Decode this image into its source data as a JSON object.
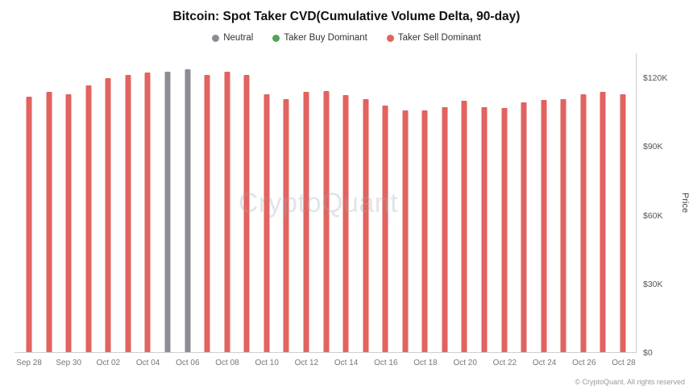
{
  "title": "Bitcoin: Spot Taker CVD(Cumulative Volume Delta, 90-day)",
  "legend": {
    "items": [
      {
        "label": "Neutral",
        "color": "#8c8c96",
        "category": "neutral"
      },
      {
        "label": "Taker Buy Dominant",
        "color": "#55a05a",
        "category": "buy"
      },
      {
        "label": "Taker Sell Dominant",
        "color": "#e2635f",
        "category": "sell"
      }
    ]
  },
  "watermark": "CryptoQuant",
  "footer": "© CryptoQuant. All rights reserved",
  "y_axis": {
    "label": "Price",
    "max": 131000,
    "ticks": [
      {
        "label": "$0",
        "value": 0
      },
      {
        "label": "$30K",
        "value": 30000
      },
      {
        "label": "$60K",
        "value": 60000
      },
      {
        "label": "$90K",
        "value": 90000
      },
      {
        "label": "$120K",
        "value": 120000
      }
    ]
  },
  "chart_data": {
    "type": "bar",
    "title": "Bitcoin: Spot Taker CVD(Cumulative Volume Delta, 90-day)",
    "ylabel": "Price",
    "ylim": [
      0,
      131000
    ],
    "grid": false,
    "legend_position": "top-center",
    "category_colors": {
      "neutral": "#8c8c96",
      "buy": "#55a05a",
      "sell": "#e2635f"
    },
    "x": [
      "Sep 28",
      "Sep 29",
      "Sep 30",
      "Oct 01",
      "Oct 02",
      "Oct 03",
      "Oct 04",
      "Oct 05",
      "Oct 06",
      "Oct 07",
      "Oct 08",
      "Oct 09",
      "Oct 10",
      "Oct 11",
      "Oct 12",
      "Oct 13",
      "Oct 14",
      "Oct 15",
      "Oct 16",
      "Oct 17",
      "Oct 18",
      "Oct 19",
      "Oct 20",
      "Oct 21",
      "Oct 22",
      "Oct 23",
      "Oct 24",
      "Oct 25",
      "Oct 26",
      "Oct 27",
      "Oct 28"
    ],
    "values": [
      112000,
      114000,
      113000,
      117000,
      120000,
      121500,
      122500,
      123000,
      124000,
      121500,
      123000,
      121500,
      113000,
      111000,
      114000,
      114500,
      112500,
      111000,
      108000,
      106000,
      106000,
      107500,
      110000,
      107500,
      107000,
      109500,
      110500,
      111000,
      113000,
      114000,
      113000
    ],
    "point_categories": [
      "sell",
      "sell",
      "sell",
      "sell",
      "sell",
      "sell",
      "sell",
      "neutral",
      "neutral",
      "sell",
      "sell",
      "sell",
      "sell",
      "sell",
      "sell",
      "sell",
      "sell",
      "sell",
      "sell",
      "sell",
      "sell",
      "sell",
      "sell",
      "sell",
      "sell",
      "sell",
      "sell",
      "sell",
      "sell",
      "sell",
      "sell"
    ],
    "x_tick_labels": [
      "Sep 28",
      "Sep 30",
      "Oct 02",
      "Oct 04",
      "Oct 06",
      "Oct 08",
      "Oct 10",
      "Oct 12",
      "Oct 14",
      "Oct 16",
      "Oct 18",
      "Oct 20",
      "Oct 22",
      "Oct 24",
      "Oct 26",
      "Oct 28"
    ],
    "x_tick_every": 2
  }
}
